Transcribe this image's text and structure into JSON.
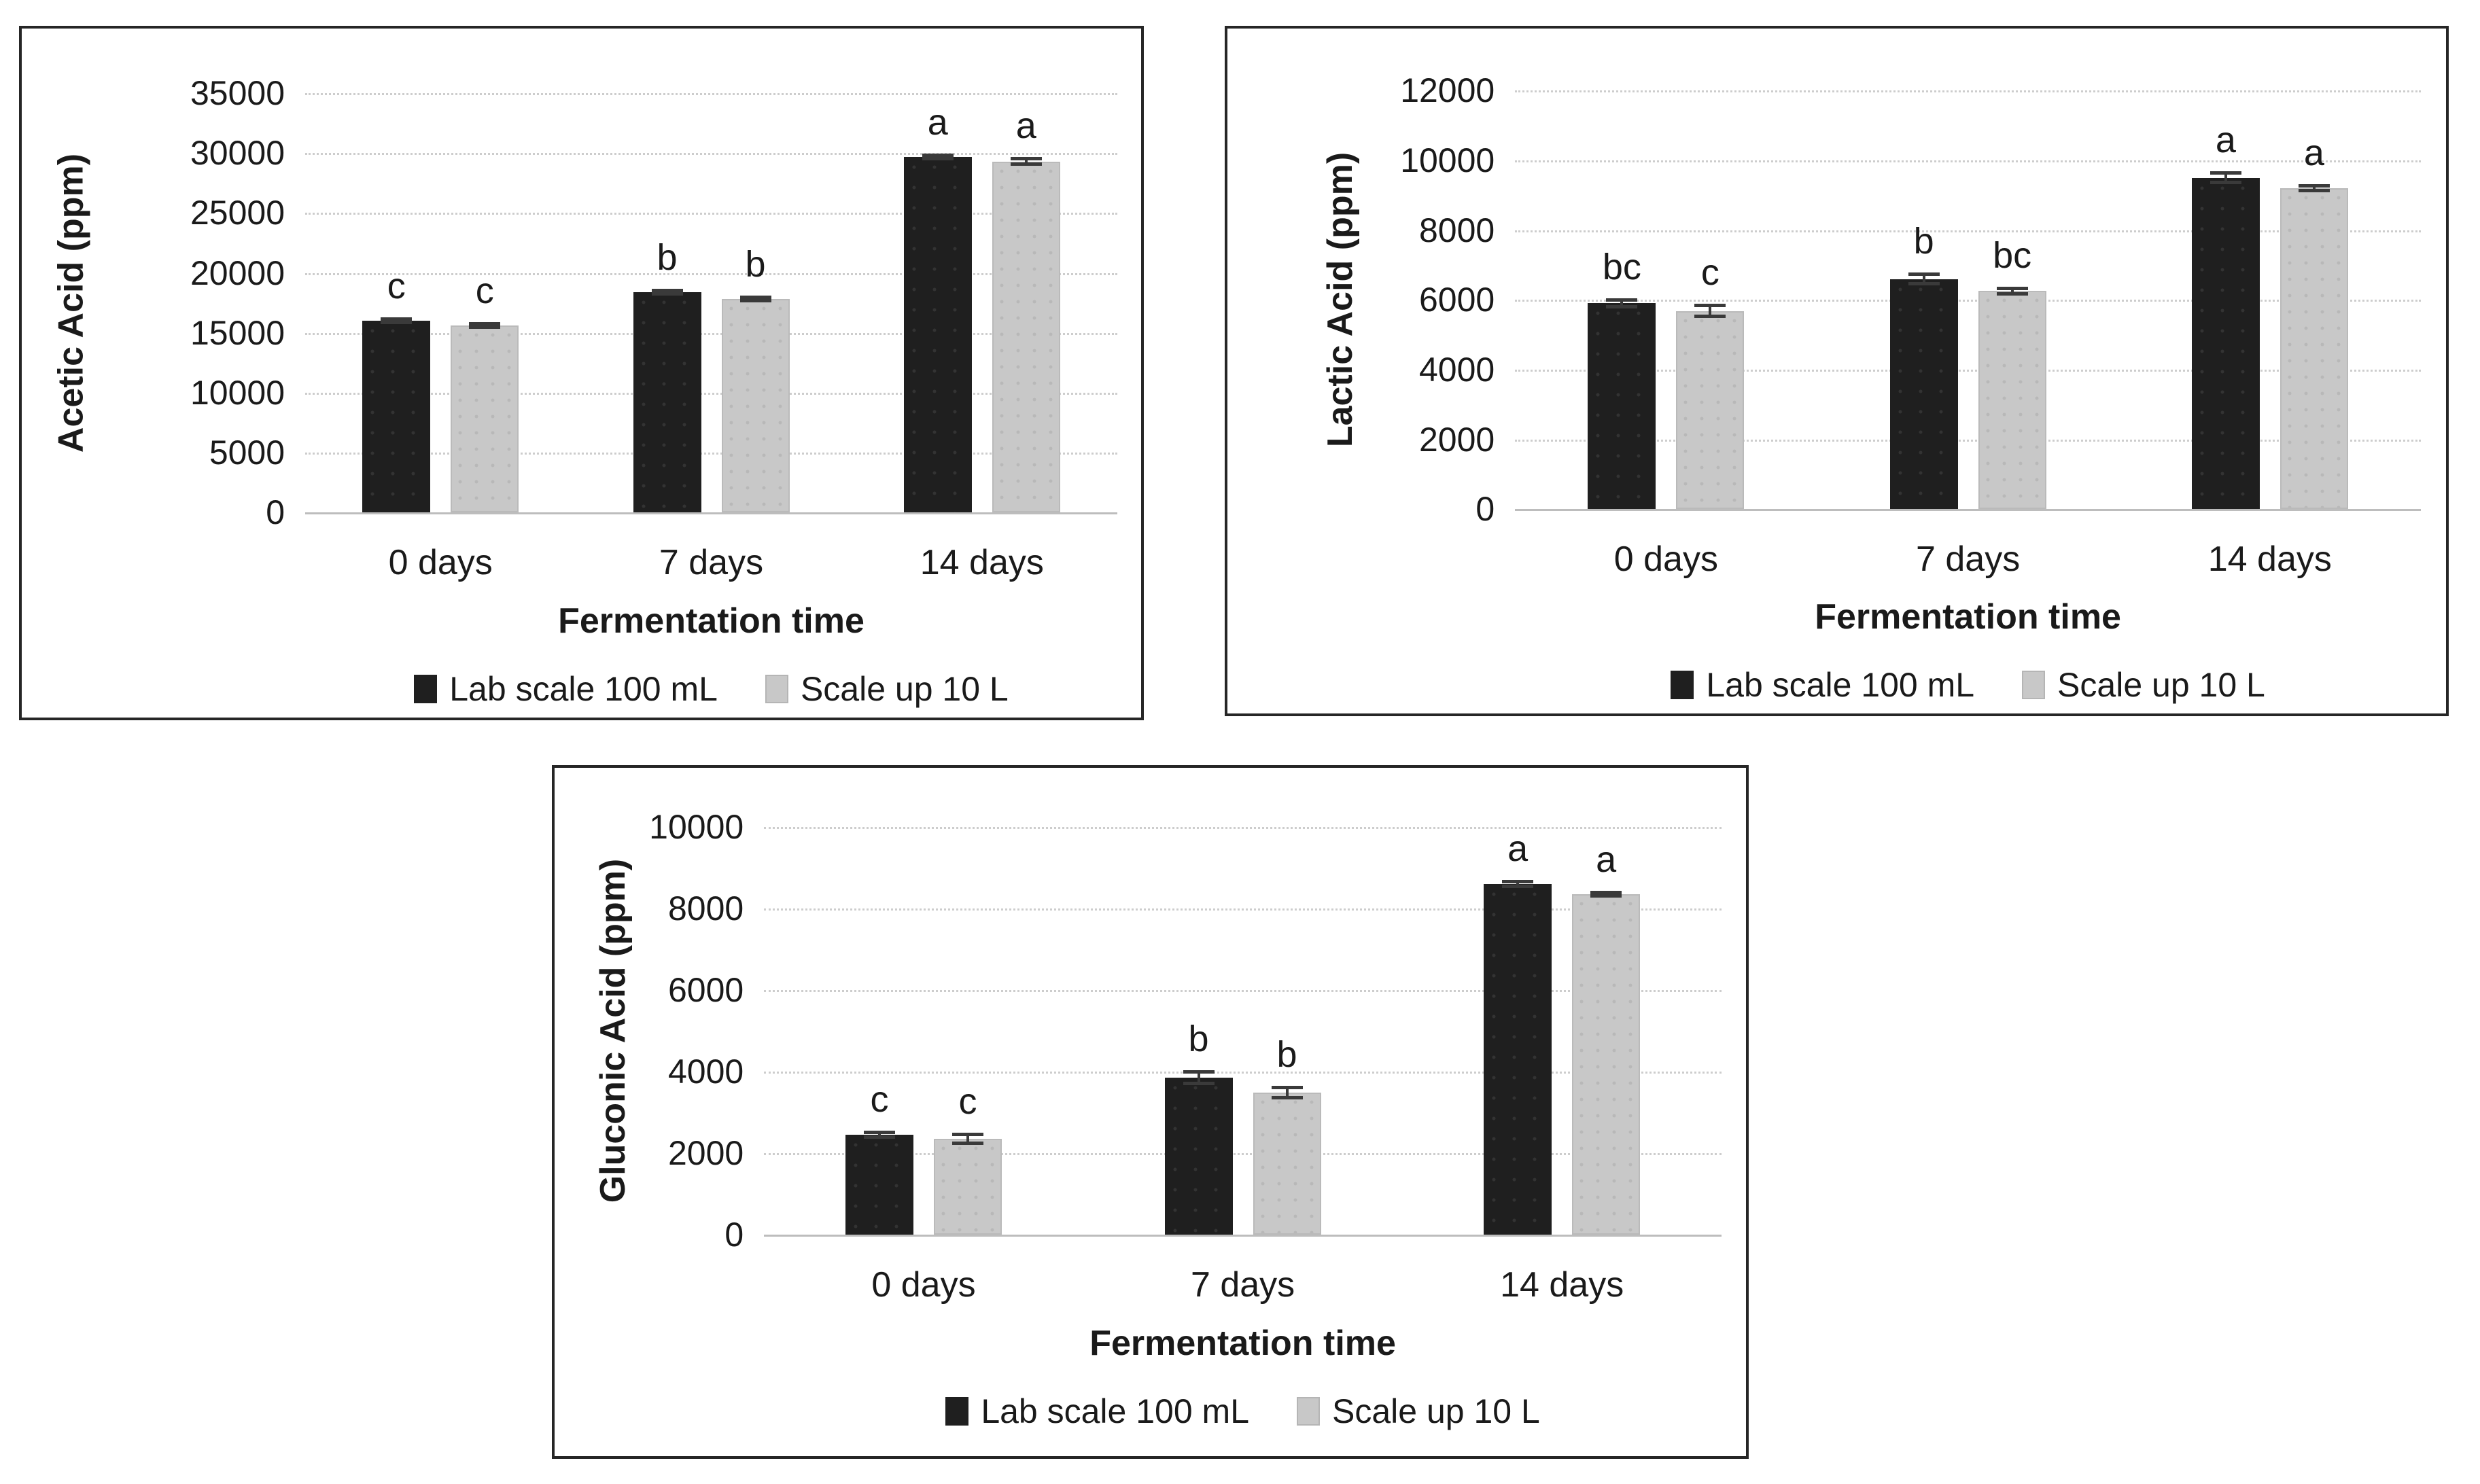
{
  "figure": {
    "background": "#ffffff",
    "panel_border_color": "#262626",
    "gridline_color": "#cdcdcd",
    "error_bar_color": "#3a3a3a"
  },
  "chart_data": [
    {
      "type": "bar",
      "panel": "top-left",
      "title": "",
      "ylabel": "Acetic Acid  (ppm)",
      "xlabel": "Fermentation time",
      "categories": [
        "0 days",
        "7 days",
        "14 days"
      ],
      "ylim": [
        0,
        35000
      ],
      "yticks": [
        0,
        5000,
        10000,
        15000,
        20000,
        25000,
        30000,
        35000
      ],
      "grid": true,
      "legend_position": "bottom",
      "series": [
        {
          "name": "Lab scale 100 mL",
          "color": "#1f1f1f",
          "values": [
            16000,
            18400,
            29700
          ],
          "errors": [
            250,
            150,
            250
          ],
          "letters": [
            "c",
            "b",
            "a"
          ]
        },
        {
          "name": "Scale up 10 L",
          "color": "#c8c8c8",
          "values": [
            15600,
            17800,
            29300
          ],
          "errors": [
            200,
            200,
            350
          ],
          "letters": [
            "c",
            "b",
            "a"
          ]
        }
      ]
    },
    {
      "type": "bar",
      "panel": "top-right",
      "title": "",
      "ylabel": "Lactic Acid  (ppm)",
      "xlabel": "Fermentation time",
      "categories": [
        "0 days",
        "7 days",
        "14 days"
      ],
      "ylim": [
        0,
        12000
      ],
      "yticks": [
        0,
        2000,
        4000,
        6000,
        8000,
        10000,
        12000
      ],
      "grid": true,
      "legend_position": "bottom",
      "series": [
        {
          "name": "Lab scale 100 mL",
          "color": "#1f1f1f",
          "values": [
            5900,
            6600,
            9500
          ],
          "errors": [
            150,
            180,
            180
          ],
          "letters": [
            "bc",
            "b",
            "a"
          ]
        },
        {
          "name": "Scale up 10 L",
          "color": "#c8c8c8",
          "values": [
            5680,
            6250,
            9200
          ],
          "errors": [
            200,
            120,
            120
          ],
          "letters": [
            "c",
            "bc",
            "a"
          ]
        }
      ]
    },
    {
      "type": "bar",
      "panel": "bottom-center",
      "title": "",
      "ylabel": "Gluconic Acid  (ppm)",
      "xlabel": "Fermentation time",
      "categories": [
        "0 days",
        "7 days",
        "14 days"
      ],
      "ylim": [
        0,
        10000
      ],
      "yticks": [
        0,
        2000,
        4000,
        6000,
        8000,
        10000
      ],
      "grid": true,
      "legend_position": "bottom",
      "series": [
        {
          "name": "Lab scale 100 mL",
          "color": "#1f1f1f",
          "values": [
            2450,
            3850,
            8600
          ],
          "errors": [
            100,
            180,
            100
          ],
          "letters": [
            "c",
            "b",
            "a"
          ]
        },
        {
          "name": "Scale up 10 L",
          "color": "#c8c8c8",
          "values": [
            2350,
            3480,
            8350
          ],
          "errors": [
            150,
            170,
            80
          ],
          "letters": [
            "c",
            "b",
            "a"
          ]
        }
      ]
    }
  ]
}
